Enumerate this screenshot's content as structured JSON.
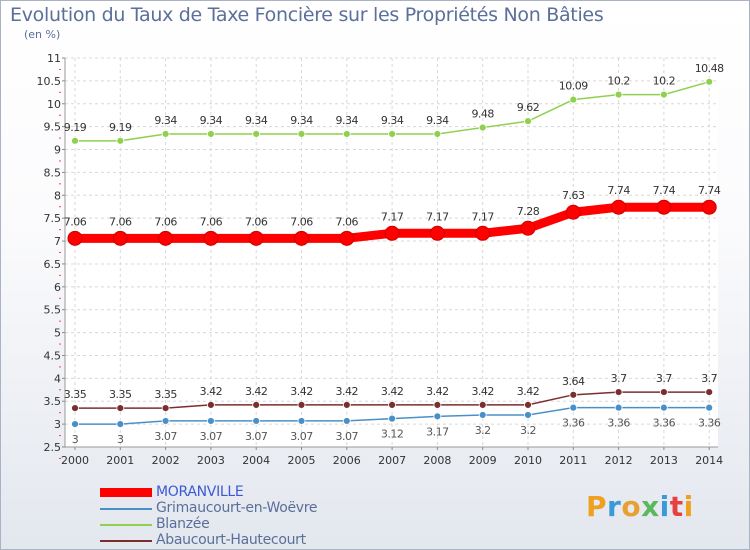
{
  "title": "Evolution du Taux de Taxe Foncière sur les Propriétés Non Bâties",
  "subtitle": "(en %)",
  "brand": {
    "letters": [
      "P",
      "r",
      "o",
      "x",
      "i",
      "t",
      "i"
    ],
    "colors": [
      "#f0a020",
      "#3a9ad9",
      "#e8a030",
      "#5cb85c",
      "#3a9ad9",
      "#e84040",
      "#f0a020"
    ]
  },
  "chart_data": {
    "type": "line",
    "title": "Evolution du Taux de Taxe Foncière sur les Propriétés Non Bâties",
    "ylabel": "(en %)",
    "xlabel": "",
    "ylim": [
      2.5,
      11
    ],
    "yticks": [
      "2.5",
      "3",
      "3.5",
      "4",
      "4.5",
      "5",
      "5.5",
      "6",
      "6.5",
      "7",
      "7.5",
      "8",
      "8.5",
      "9",
      "9.5",
      "10",
      "10.5",
      "11"
    ],
    "categories": [
      "2000",
      "2001",
      "2002",
      "2003",
      "2004",
      "2005",
      "2006",
      "2007",
      "2008",
      "2009",
      "2010",
      "2011",
      "2012",
      "2013",
      "2014"
    ],
    "series": [
      {
        "name": "Blanzée",
        "color": "#8fd14f",
        "labelColor": "#333333",
        "thick": false,
        "values": [
          9.19,
          9.19,
          9.34,
          9.34,
          9.34,
          9.34,
          9.34,
          9.34,
          9.34,
          9.48,
          9.62,
          10.09,
          10.2,
          10.2,
          10.48
        ],
        "labels": [
          "9.19",
          "9.19",
          "9.34",
          "9.34",
          "9.34",
          "9.34",
          "9.34",
          "9.34",
          "9.34",
          "9.48",
          "9.62",
          "10.09",
          "10.2",
          "10.2",
          "10.48"
        ]
      },
      {
        "name": "MORANVILLE",
        "color": "#ff0000",
        "labelColor": "#333333",
        "thick": true,
        "values": [
          7.06,
          7.06,
          7.06,
          7.06,
          7.06,
          7.06,
          7.06,
          7.17,
          7.17,
          7.17,
          7.28,
          7.63,
          7.74,
          7.74,
          7.74
        ],
        "labels": [
          "7.06",
          "7.06",
          "7.06",
          "7.06",
          "7.06",
          "7.06",
          "7.06",
          "7.17",
          "7.17",
          "7.17",
          "7.28",
          "7.63",
          "7.74",
          "7.74",
          "7.74"
        ]
      },
      {
        "name": "Abaucourt-Hautecourt",
        "color": "#7b2e2e",
        "labelColor": "#333333",
        "thick": false,
        "values": [
          3.35,
          3.35,
          3.35,
          3.42,
          3.42,
          3.42,
          3.42,
          3.42,
          3.42,
          3.42,
          3.42,
          3.64,
          3.7,
          3.7,
          3.7
        ],
        "labels": [
          "3.35",
          "3.35",
          "3.35",
          "3.42",
          "3.42",
          "3.42",
          "3.42",
          "3.42",
          "3.42",
          "3.42",
          "3.42",
          "3.64",
          "3.7",
          "3.7",
          "3.7"
        ]
      },
      {
        "name": "Grimaucourt-en-Woëvre",
        "color": "#4a90c8",
        "labelColor": "#555555",
        "thick": false,
        "values": [
          3,
          3,
          3.07,
          3.07,
          3.07,
          3.07,
          3.07,
          3.12,
          3.17,
          3.2,
          3.2,
          3.36,
          3.36,
          3.36,
          3.36
        ],
        "labels": [
          "3",
          "3",
          "3.07",
          "3.07",
          "3.07",
          "3.07",
          "3.07",
          "3.12",
          "3.17",
          "3.2",
          "3.2",
          "3.36",
          "3.36",
          "3.36",
          "3.36"
        ]
      }
    ],
    "legend": [
      {
        "name": "MORANVILLE",
        "color": "#ff0000",
        "thick": true
      },
      {
        "name": "Grimaucourt-en-Woëvre",
        "color": "#4a90c8",
        "thick": false
      },
      {
        "name": "Blanzée",
        "color": "#8fd14f",
        "thick": false
      },
      {
        "name": "Abaucourt-Hautecourt",
        "color": "#7b2e2e",
        "thick": false
      }
    ]
  }
}
